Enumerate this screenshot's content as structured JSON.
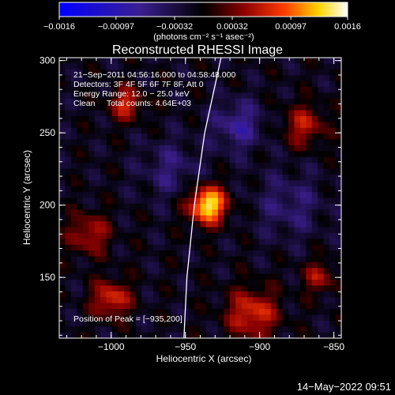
{
  "colorbar": {
    "ticks": [
      -0.0016,
      -0.00097,
      -0.00032,
      0.00032,
      0.00097,
      0.0016
    ],
    "tick_labels": [
      "−0.0016",
      "−0.00097",
      "−0.00032",
      "0.00032",
      "0.00097",
      "0.0016"
    ],
    "units": "(photons cm⁻² s⁻¹ asec⁻²)",
    "range": [
      -0.0016,
      0.0016
    ],
    "colors": [
      "#0000ff",
      "#3b1f8f",
      "#000000",
      "#8b0000",
      "#ff3b00",
      "#ffd400",
      "#ffffff"
    ]
  },
  "chart_data": {
    "type": "heatmap",
    "title": "Reconstructed RHESSI Image",
    "xlabel": "Heliocentric X (arcsec)",
    "ylabel": "Heliocentric Y (arcsec)",
    "xlim": [
      -1035,
      -845
    ],
    "ylim": [
      108,
      302
    ],
    "xticks": [
      -1000,
      -950,
      -900,
      -850
    ],
    "yticks": [
      150,
      200,
      250,
      300
    ],
    "xtick_labels": [
      "−1000",
      "−950",
      "−900",
      "−850"
    ],
    "ytick_labels": [
      "150",
      "200",
      "250",
      "300"
    ],
    "info_lines": [
      "21−Sep−2011 04:56:16.000 to 04:58:48.000",
      "Detectors: 3F 4F 5F 6F 7F 8F, Att 0",
      "Energy Range: 12.0 − 25.0 keV",
      "Clean     Total counts: 4.64E+03"
    ],
    "peak_label": "Position of Peak = [−935,200]",
    "peak": [
      -935,
      200
    ],
    "limb_curve": [
      [
        -951,
        108
      ],
      [
        -949,
        150
      ],
      [
        -944,
        200
      ],
      [
        -937,
        250
      ],
      [
        -926,
        302
      ]
    ],
    "sources": [
      {
        "x": -935,
        "y": 200,
        "amplitude": 0.0016,
        "sigma": 9
      },
      {
        "x": -990,
        "y": 270,
        "amplitude": 0.0008,
        "sigma": 8
      },
      {
        "x": -1015,
        "y": 180,
        "amplitude": 0.0007,
        "sigma": 10
      },
      {
        "x": -1000,
        "y": 135,
        "amplitude": 0.0009,
        "sigma": 9
      },
      {
        "x": -905,
        "y": 125,
        "amplitude": 0.0009,
        "sigma": 12
      },
      {
        "x": -870,
        "y": 255,
        "amplitude": 0.0007,
        "sigma": 10
      },
      {
        "x": -860,
        "y": 150,
        "amplitude": 0.0006,
        "sigma": 8
      },
      {
        "x": -915,
        "y": 255,
        "amplitude": -0.0006,
        "sigma": 12
      },
      {
        "x": -960,
        "y": 225,
        "amplitude": -0.0004,
        "sigma": 14
      },
      {
        "x": -880,
        "y": 200,
        "amplitude": -0.0004,
        "sigma": 16
      }
    ]
  },
  "footer": {
    "timestamp": "14−May−2022 09:51"
  }
}
